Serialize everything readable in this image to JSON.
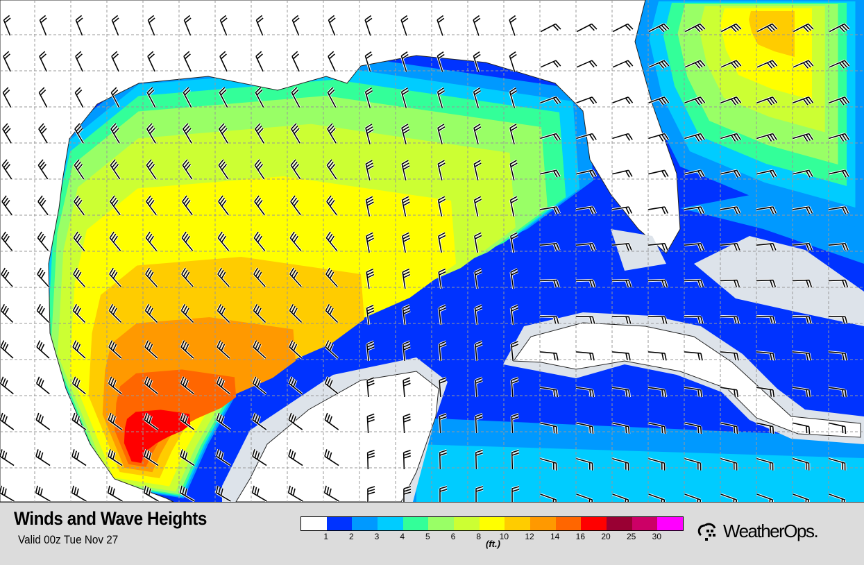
{
  "title": "Winds and Wave Heights",
  "valid": "Valid 00z Tue Nov 27",
  "legend": {
    "unit": "(ft.)",
    "colors": [
      "#ffffff",
      "#0033ff",
      "#0099ff",
      "#00ccff",
      "#33ff99",
      "#99ff66",
      "#ccff33",
      "#ffff00",
      "#ffcc00",
      "#ff9900",
      "#ff6600",
      "#ff0000",
      "#990033",
      "#cc0066",
      "#ff00ff"
    ],
    "labels": [
      "1",
      "2",
      "3",
      "4",
      "5",
      "6",
      "8",
      "10",
      "12",
      "14",
      "16",
      "20",
      "25",
      "30"
    ]
  },
  "brand": "WeatherOps."
}
